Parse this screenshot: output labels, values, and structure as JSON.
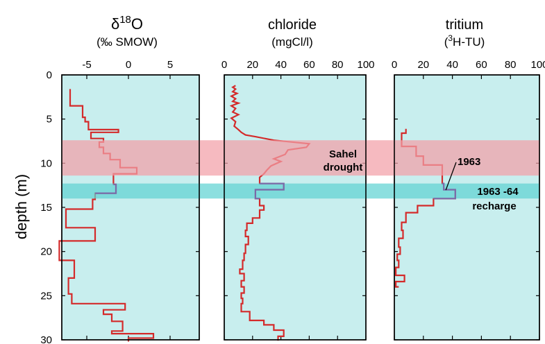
{
  "shared": {
    "ylabel": "depth (m)",
    "ylim": [
      0,
      30
    ],
    "yticks": [
      "0",
      "5",
      "10",
      "15",
      "20",
      "25",
      "30"
    ],
    "yticks_values": [
      0,
      5,
      10,
      15,
      20,
      25,
      30
    ],
    "panel_color": "#c8eeee",
    "line_color": "#d42a2a",
    "band_line_color": "#7b6aa8",
    "bands": [
      {
        "name": "sahel",
        "from": 7.4,
        "to": 11.4,
        "color": "#f2a0a8",
        "label_lines": [
          "Sahel",
          "drought"
        ]
      },
      {
        "name": "recharge",
        "from": 12.3,
        "to": 14.0,
        "color": "#5fd2d2",
        "label_lines": [
          "1963 -64",
          "recharge"
        ]
      }
    ],
    "annotation": {
      "text": "1963",
      "panel": 2,
      "x": 35,
      "y": 13.2
    }
  },
  "chart_data": [
    {
      "type": "line",
      "title": "δ18O",
      "title_parts": {
        "base": "δ",
        "sup": "18",
        "tail": "O"
      },
      "subtitle": "(‰ SMOW)",
      "xlim": [
        -8,
        8.5
      ],
      "xticks": [
        "-5",
        "0",
        "5"
      ],
      "xticks_values": [
        -5,
        0,
        5
      ],
      "series": [
        {
          "values": [
            [
              -7,
              1.6
            ],
            [
              -7,
              3.5
            ],
            [
              -5.5,
              3.5
            ],
            [
              -5.5,
              4.8
            ],
            [
              -5.2,
              4.8
            ],
            [
              -5.2,
              5.3
            ],
            [
              -4.8,
              5.3
            ],
            [
              -4.8,
              6.2
            ],
            [
              -1.2,
              6.2
            ],
            [
              -1.2,
              6.5
            ],
            [
              -4.5,
              6.5
            ],
            [
              -4.5,
              7.2
            ],
            [
              -3,
              7.2
            ],
            [
              -3,
              7.6
            ],
            [
              -3.5,
              7.6
            ],
            [
              -3.5,
              8.2
            ],
            [
              -3,
              8.2
            ],
            [
              -3,
              8.9
            ],
            [
              -2.2,
              8.9
            ],
            [
              -2.2,
              9.6
            ],
            [
              -1,
              9.6
            ],
            [
              -1,
              10.5
            ],
            [
              1,
              10.5
            ],
            [
              1,
              11.2
            ],
            [
              -1.8,
              11.2
            ],
            [
              -1.8,
              12.4
            ],
            [
              -1.5,
              12.4
            ],
            [
              -1.5,
              13.4
            ],
            [
              -4,
              13.4
            ],
            [
              -4,
              14.1
            ],
            [
              -4.3,
              14.1
            ],
            [
              -4.3,
              15.2
            ],
            [
              -7.5,
              15.2
            ],
            [
              -7.5,
              17.3
            ],
            [
              -4,
              17.3
            ],
            [
              -4,
              18.8
            ],
            [
              -8.3,
              18.8
            ],
            [
              -8.3,
              21
            ],
            [
              -6.5,
              21
            ],
            [
              -6.5,
              23
            ],
            [
              -7.2,
              23
            ],
            [
              -7.2,
              24.8
            ],
            [
              -6.8,
              24.8
            ],
            [
              -6.8,
              25.9
            ],
            [
              -0.4,
              25.9
            ],
            [
              -0.4,
              26.6
            ],
            [
              -3,
              26.6
            ],
            [
              -3,
              27.1
            ],
            [
              -2,
              27.1
            ],
            [
              -2,
              27.9
            ],
            [
              -0.7,
              27.9
            ],
            [
              -0.7,
              29
            ],
            [
              -2,
              29
            ],
            [
              -2,
              29.3
            ],
            [
              3,
              29.3
            ],
            [
              3,
              29.8
            ],
            [
              0,
              29.8
            ],
            [
              0,
              30.2
            ]
          ]
        }
      ]
    },
    {
      "type": "line",
      "title": "chloride",
      "subtitle": "(mgCl/l)",
      "xlim": [
        0,
        100
      ],
      "xticks": [
        "0",
        "20",
        "40",
        "60",
        "80",
        "100"
      ],
      "xticks_values": [
        0,
        20,
        40,
        60,
        80,
        100
      ],
      "series": [
        {
          "values": [
            [
              8,
              1.2
            ],
            [
              6,
              1.4
            ],
            [
              8,
              1.6
            ],
            [
              6,
              1.9
            ],
            [
              9,
              2.1
            ],
            [
              5,
              2.4
            ],
            [
              8,
              2.7
            ],
            [
              6,
              3
            ],
            [
              10,
              3.2
            ],
            [
              5,
              3.5
            ],
            [
              8,
              3.8
            ],
            [
              6,
              4.2
            ],
            [
              10,
              4.5
            ],
            [
              5,
              4.9
            ],
            [
              8,
              5.3
            ],
            [
              7,
              5.8
            ],
            [
              10,
              6.2
            ],
            [
              12,
              6.5
            ],
            [
              15,
              6.8
            ],
            [
              22,
              7
            ],
            [
              35,
              7.4
            ],
            [
              48,
              7.6
            ],
            [
              60,
              7.8
            ],
            [
              58,
              8.2
            ],
            [
              45,
              8.5
            ],
            [
              43,
              9
            ],
            [
              35,
              9.5
            ],
            [
              40,
              9.8
            ],
            [
              33,
              10.3
            ],
            [
              30,
              10.8
            ],
            [
              28,
              11.2
            ],
            [
              25,
              11.6
            ],
            [
              25,
              12.3
            ],
            [
              42,
              12.3
            ],
            [
              42,
              13
            ],
            [
              22,
              13
            ],
            [
              22,
              14
            ],
            [
              25,
              14
            ],
            [
              25,
              14.8
            ],
            [
              28,
              14.8
            ],
            [
              28,
              15.3
            ],
            [
              25,
              15.3
            ],
            [
              25,
              16.2
            ],
            [
              20,
              16.2
            ],
            [
              20,
              16.8
            ],
            [
              16,
              16.8
            ],
            [
              16,
              17.6
            ],
            [
              15,
              17.6
            ],
            [
              15,
              18.3
            ],
            [
              17,
              18.3
            ],
            [
              17,
              19.2
            ],
            [
              15,
              19.2
            ],
            [
              15,
              20.2
            ],
            [
              14,
              20.2
            ],
            [
              14,
              21
            ],
            [
              13,
              21
            ],
            [
              13,
              22
            ],
            [
              11,
              22
            ],
            [
              11,
              22.5
            ],
            [
              14,
              22.5
            ],
            [
              14,
              23.3
            ],
            [
              12,
              23.3
            ],
            [
              12,
              24
            ],
            [
              14,
              24
            ],
            [
              14,
              24.7
            ],
            [
              12,
              24.7
            ],
            [
              12,
              25.3
            ],
            [
              13,
              25.3
            ],
            [
              13,
              25.9
            ],
            [
              12,
              25.9
            ],
            [
              12,
              26.8
            ],
            [
              18,
              26.8
            ],
            [
              18,
              27.8
            ],
            [
              28,
              27.8
            ],
            [
              28,
              28.3
            ],
            [
              35,
              28.3
            ],
            [
              35,
              28.9
            ],
            [
              42,
              28.9
            ],
            [
              42,
              29.6
            ],
            [
              38,
              29.6
            ],
            [
              38,
              30.1
            ]
          ]
        }
      ]
    },
    {
      "type": "line",
      "title": "tritium",
      "title_parts": {
        "open": "(",
        "sup": "3",
        "tail": "H-TU)"
      },
      "subtitle": "(3H-TU)",
      "xlim": [
        0,
        100
      ],
      "xticks": [
        "0",
        "20",
        "40",
        "60",
        "80",
        "100"
      ],
      "xticks_values": [
        0,
        20,
        40,
        60,
        80,
        100
      ],
      "series": [
        {
          "values": [
            [
              8,
              6.1
            ],
            [
              8,
              6.6
            ],
            [
              5,
              6.6
            ],
            [
              5,
              8.1
            ],
            [
              15,
              8.1
            ],
            [
              15,
              9.2
            ],
            [
              20,
              9.2
            ],
            [
              20,
              10.2
            ],
            [
              33,
              10.2
            ],
            [
              33,
              12.3
            ],
            [
              34,
              12.3
            ],
            [
              34,
              13.0
            ],
            [
              42,
              13.0
            ],
            [
              42,
              14.0
            ],
            [
              27,
              14.0
            ],
            [
              27,
              14.8
            ],
            [
              16,
              14.8
            ],
            [
              16,
              15.6
            ],
            [
              8,
              15.6
            ],
            [
              8,
              16.7
            ],
            [
              5,
              16.7
            ],
            [
              5,
              17.6
            ],
            [
              6,
              17.6
            ],
            [
              6,
              18.5
            ],
            [
              3,
              18.5
            ],
            [
              3,
              19.5
            ],
            [
              4,
              19.5
            ],
            [
              4,
              20.3
            ],
            [
              2,
              20.3
            ],
            [
              2,
              21.0
            ],
            [
              3,
              21.0
            ],
            [
              3,
              21.8
            ],
            [
              1,
              21.8
            ],
            [
              1,
              22.7
            ],
            [
              7,
              22.7
            ],
            [
              7,
              23.4
            ],
            [
              1,
              23.4
            ],
            [
              1,
              24.0
            ],
            [
              3,
              24.0
            ]
          ]
        }
      ]
    }
  ]
}
